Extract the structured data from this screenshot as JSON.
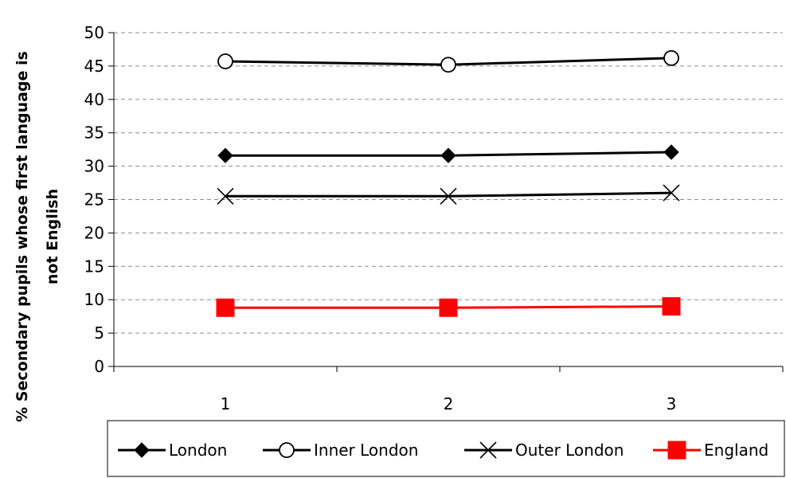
{
  "chart_data": {
    "type": "line",
    "categories": [
      "1",
      "2",
      "3"
    ],
    "ylabel_line1": "% Secondary pupils whose first language is",
    "ylabel_line2": "not English",
    "xlabel": "",
    "ylim": [
      0,
      50
    ],
    "y_ticks": [
      0,
      5,
      10,
      15,
      20,
      25,
      30,
      35,
      40,
      45,
      50
    ],
    "grid": true,
    "legend_position": "bottom",
    "series": [
      {
        "name": "London",
        "values": [
          31.6,
          31.6,
          32.1
        ],
        "color": "#000000",
        "marker": "diamond"
      },
      {
        "name": "Inner London",
        "values": [
          45.7,
          45.2,
          46.2
        ],
        "color": "#000000",
        "marker": "circle-open"
      },
      {
        "name": "Outer London",
        "values": [
          25.5,
          25.5,
          26.0
        ],
        "color": "#000000",
        "marker": "x"
      },
      {
        "name": "England",
        "values": [
          8.8,
          8.8,
          9.0
        ],
        "color": "#ff0000",
        "marker": "square"
      }
    ]
  }
}
